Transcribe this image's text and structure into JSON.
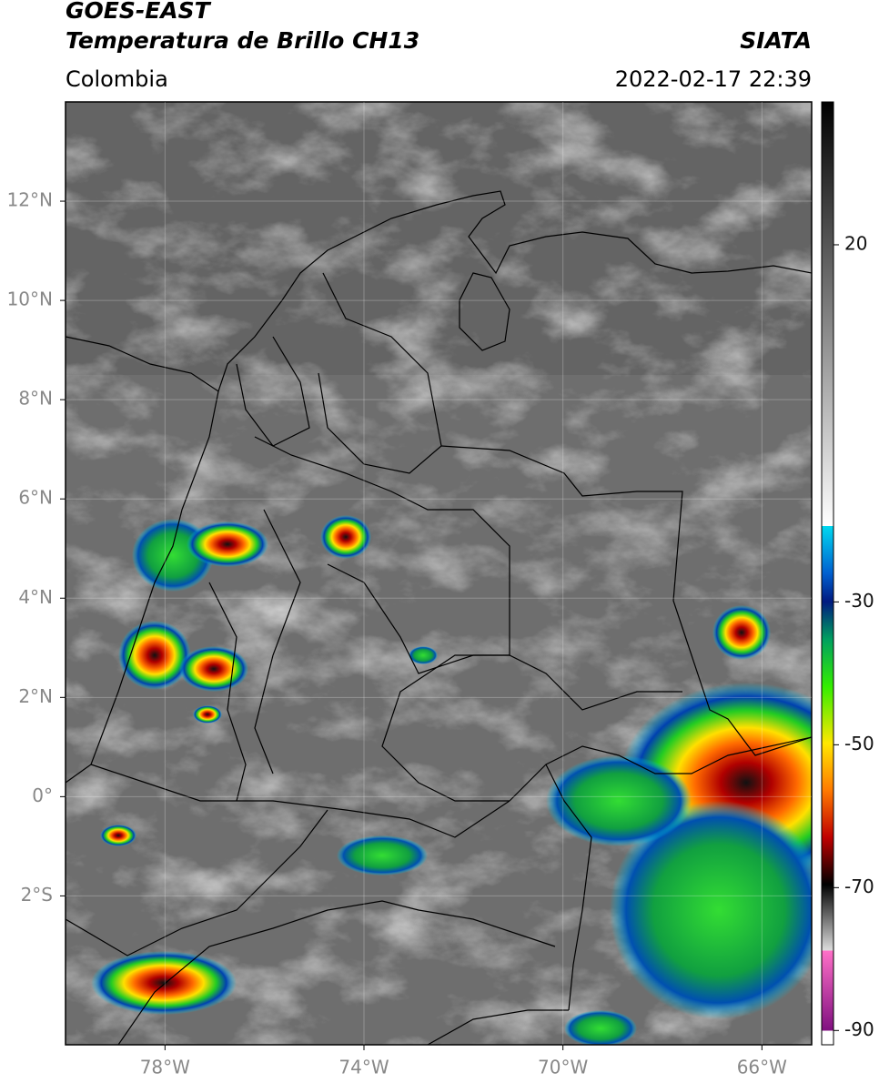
{
  "header": {
    "title": "GOES-EAST",
    "subtitle": "Temperatura de Brillo CH13",
    "source": "SIATA",
    "region": "Colombia",
    "datetime": "2022-02-17 22:39"
  },
  "map": {
    "xlim": [
      -80,
      -65
    ],
    "ylim": [
      -5,
      14
    ],
    "xticks": [
      {
        "value": -78,
        "label": "78°W"
      },
      {
        "value": -74,
        "label": "74°W"
      },
      {
        "value": -70,
        "label": "70°W"
      },
      {
        "value": -66,
        "label": "66°W"
      }
    ],
    "yticks": [
      {
        "value": 12,
        "label": "12°N"
      },
      {
        "value": 10,
        "label": "10°N"
      },
      {
        "value": 8,
        "label": "8°N"
      },
      {
        "value": 6,
        "label": "6°N"
      },
      {
        "value": 4,
        "label": "4°N"
      },
      {
        "value": 2,
        "label": "2°N"
      },
      {
        "value": 0,
        "label": "0°"
      },
      {
        "value": -2,
        "label": "2°S"
      }
    ],
    "grid": true
  },
  "colorbar": {
    "ylim": [
      -92,
      40
    ],
    "yticks": [
      20,
      -30,
      -50,
      -70,
      -90
    ]
  }
}
